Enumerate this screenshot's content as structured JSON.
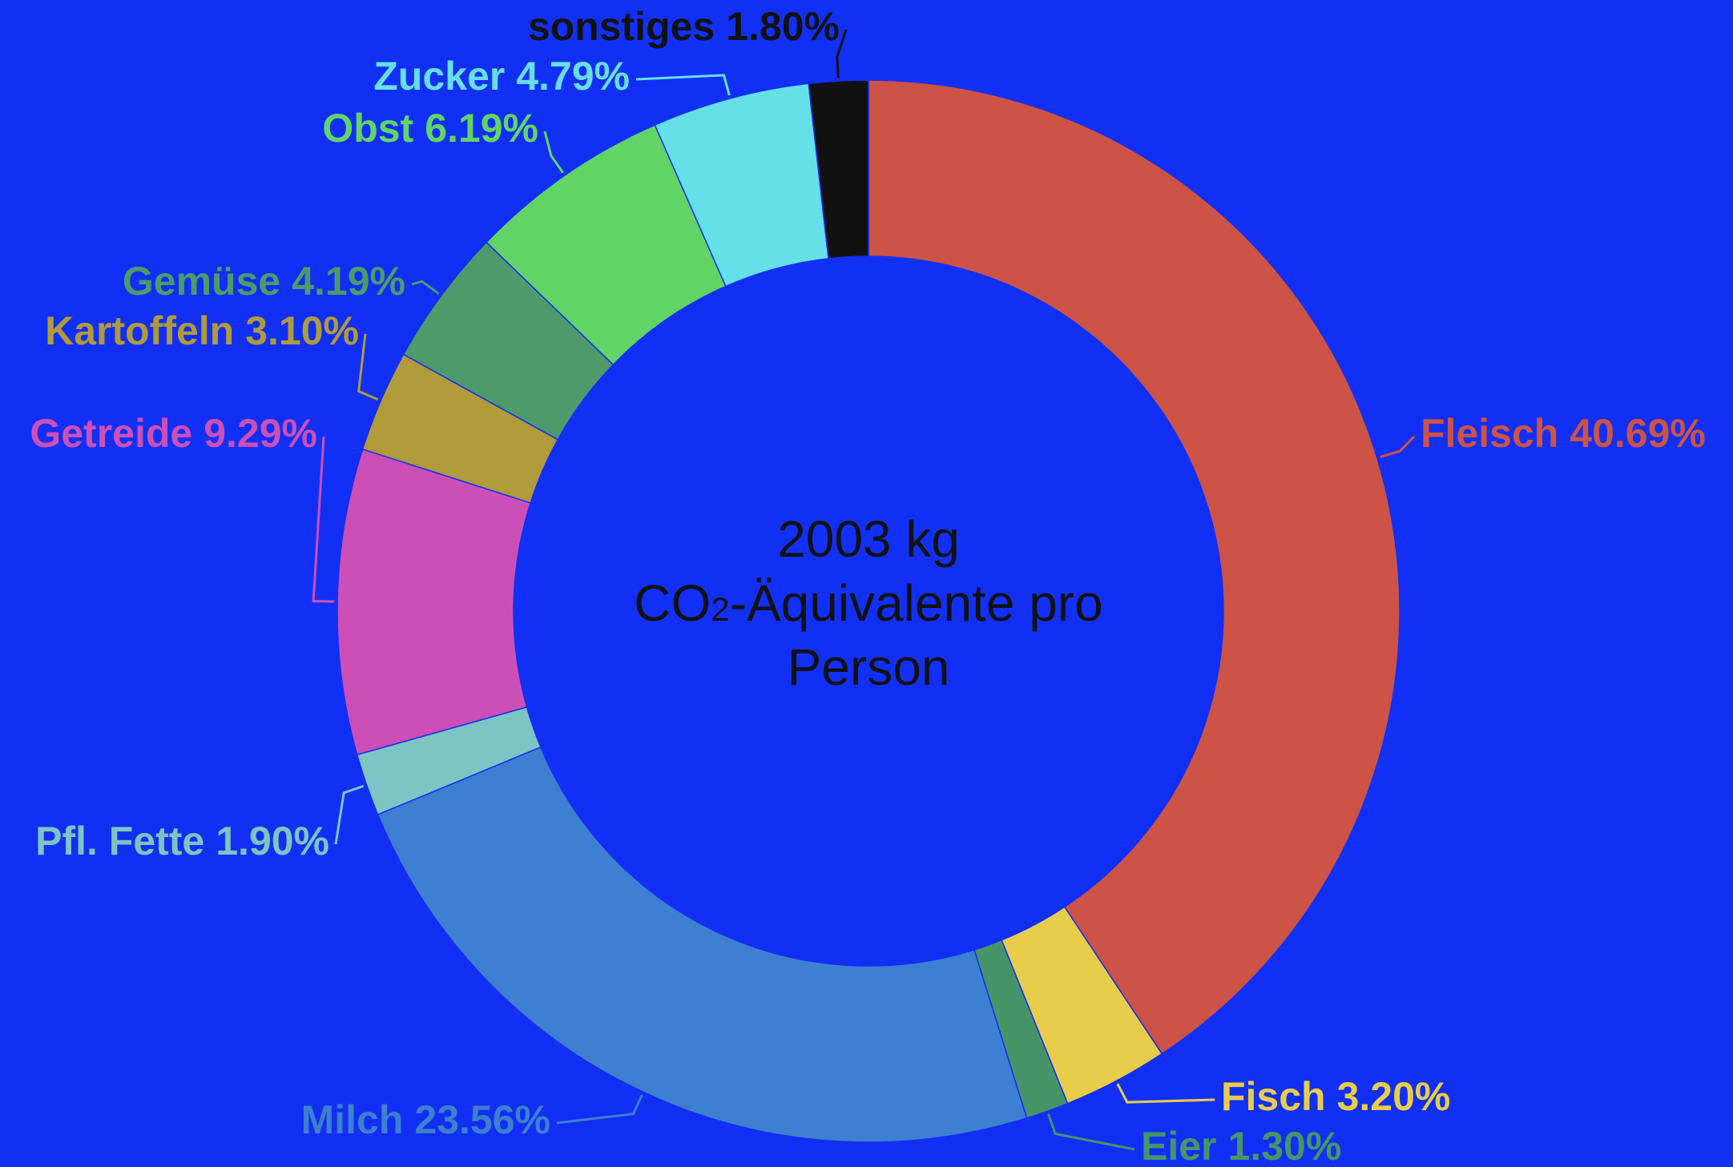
{
  "chart_data": {
    "type": "donut",
    "center_text": {
      "line1": "2003 kg",
      "line2_a": "CO",
      "line2_sub": "2",
      "line2_b": "-Äquivalente pro",
      "line3": "Person"
    },
    "categories": [
      "Fleisch",
      "Fisch",
      "Eier",
      "Milch",
      "Pfl. Fette",
      "Getreide",
      "Kartoffeln",
      "Gemüse",
      "Obst",
      "Zucker",
      "sonstiges"
    ],
    "values": [
      40.69,
      3.2,
      1.3,
      23.56,
      1.9,
      9.29,
      3.1,
      4.19,
      6.19,
      4.79,
      1.8
    ],
    "value_labels": [
      "40.69%",
      "3.20%",
      "1.30%",
      "23.56%",
      "1.90%",
      "9.29%",
      "3.10%",
      "4.19%",
      "6.19%",
      "4.79%",
      "1.80%"
    ],
    "colors": [
      "#cc5346",
      "#e8cd4a",
      "#479469",
      "#3d7fd0",
      "#7fc4c4",
      "#cc4fb8",
      "#b09a3a",
      "#4e9a6b",
      "#62d466",
      "#66e0e8",
      "#111111"
    ]
  }
}
